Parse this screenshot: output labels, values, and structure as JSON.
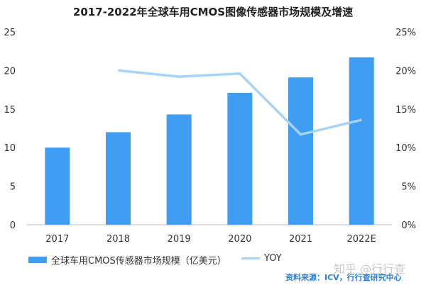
{
  "chart_data": {
    "type": "bar+line",
    "title": "2017-2022年全球车用CMOS图像传感器市场规模及增速",
    "categories": [
      "2017",
      "2018",
      "2019",
      "2020",
      "2021",
      "2022E"
    ],
    "series": [
      {
        "name": "全球车用CMOS传感器市场规模（亿美元）",
        "type": "bar",
        "axis": "left",
        "color": "#3f9ef4",
        "values": [
          10,
          12,
          14.3,
          17.1,
          19.1,
          21.7
        ]
      },
      {
        "name": "YOY",
        "type": "line",
        "axis": "right",
        "color": "#a9d3f5",
        "values": [
          null,
          20.0,
          19.2,
          19.6,
          11.7,
          13.6
        ]
      }
    ],
    "ylim_left": [
      0,
      25
    ],
    "yticks_left": [
      "0",
      "5",
      "10",
      "15",
      "20",
      "25"
    ],
    "ylim_right": [
      0,
      25
    ],
    "yticks_right": [
      "0%",
      "5%",
      "10%",
      "15%",
      "20%",
      "25%"
    ],
    "grid": false,
    "legend_position": "bottom"
  },
  "watermark": "知乎 @行行查",
  "source": "资料来源：ICV，行行查研究中心"
}
